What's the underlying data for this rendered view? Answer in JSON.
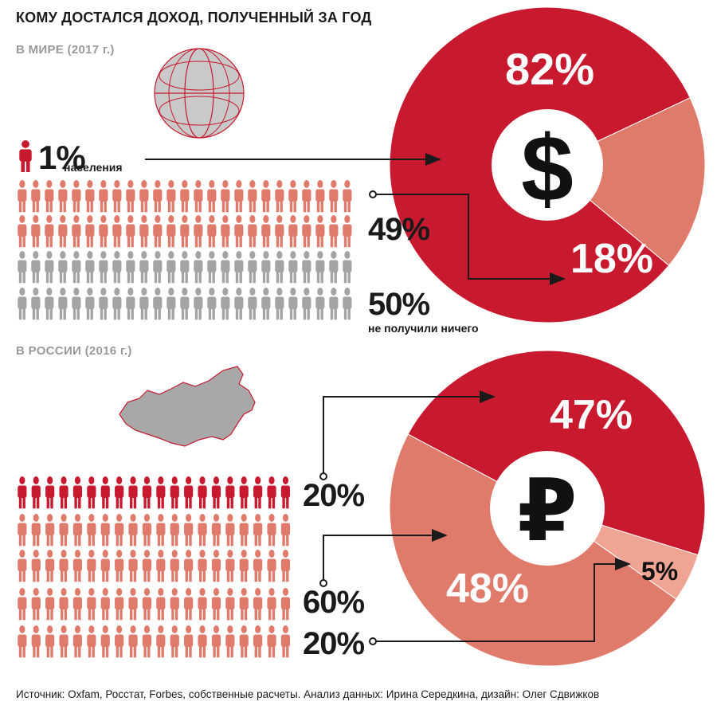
{
  "title": "КОМУ ДОСТАЛСЯ ДОХОД, ПОЛУЧЕННЫЙ ЗА ГОД",
  "world": {
    "heading": "В МИРЕ (2017 г.)",
    "top_pct": "1%",
    "top_caption": "населения",
    "mid_pct": "49%",
    "bottom_pct": "50%",
    "bottom_caption": "не получили ничего",
    "currency_symbol": "$"
  },
  "russia": {
    "heading": "В РОССИИ (2016 г.)",
    "top_pct": "20%",
    "mid_pct": "60%",
    "bottom_pct": "20%",
    "currency_symbol": "₽"
  },
  "source": "Источник: Oxfam, Росстат, Forbes, собственные расчеты. Анализ данных: Ирина Середкина, дизайн: Олег Сдвижков",
  "colors": {
    "dark_red": "#c8192f",
    "salmon": "#e07a6a",
    "light_salmon": "#f0a494",
    "gray": "#a4a4a4"
  },
  "chart_data": [
    {
      "type": "pie",
      "categories": [
        "1% населения",
        "49%",
        "50%"
      ],
      "values": [
        82,
        18,
        0
      ],
      "labels": [
        "82%",
        "18%",
        ""
      ]
    },
    {
      "type": "pie",
      "categories": [
        "20%",
        "60%",
        "20%"
      ],
      "values": [
        47,
        48,
        5
      ],
      "labels": [
        "47%",
        "48%",
        "5%"
      ]
    }
  ]
}
